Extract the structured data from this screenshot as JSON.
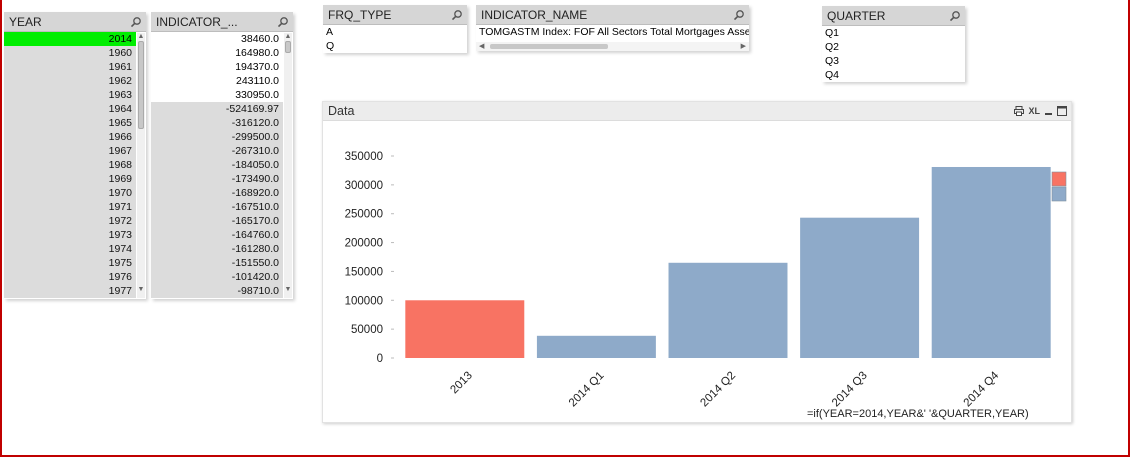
{
  "year_box": {
    "title": "YEAR",
    "selected": "2014",
    "items": [
      "1960",
      "1961",
      "1962",
      "1963",
      "1964",
      "1965",
      "1966",
      "1967",
      "1968",
      "1969",
      "1970",
      "1971",
      "1972",
      "1973",
      "1974",
      "1975",
      "1976",
      "1977"
    ]
  },
  "indicator_box": {
    "title": "INDICATOR_...",
    "white_items": [
      "38460.0",
      "164980.0",
      "194370.0",
      "243110.0",
      "330950.0"
    ],
    "gray_items": [
      "-524169.97",
      "-316120.0",
      "-299500.0",
      "-267310.0",
      "-184050.0",
      "-173490.0",
      "-168920.0",
      "-167510.0",
      "-165170.0",
      "-164760.0",
      "-161280.0",
      "-151550.0",
      "-101420.0",
      "-98710.0"
    ]
  },
  "frq_box": {
    "title": "FRQ_TYPE",
    "items": [
      "A",
      "Q"
    ]
  },
  "indicator_name_box": {
    "title": "INDICATOR_NAME",
    "items": [
      "TOMGASTM Index: FOF All Sectors Total Mortgages Asse"
    ]
  },
  "quarter_box": {
    "title": "QUARTER",
    "items": [
      "Q1",
      "Q2",
      "Q3",
      "Q4"
    ]
  },
  "chart_panel": {
    "title": "Data",
    "xl_label": "XL",
    "expression": "=if(YEAR=2014,YEAR&' '&QUARTER,YEAR)"
  },
  "colors": {
    "selected_green": "#00ee00",
    "bar_highlight": "#f87363",
    "bar_default": "#8eaac9",
    "alt_row": "#dcdcdc"
  },
  "chart_data": {
    "type": "bar",
    "categories": [
      "2013",
      "2014 Q1",
      "2014 Q2",
      "2014 Q3",
      "2014 Q4"
    ],
    "values": [
      100000,
      38460,
      164980,
      243110,
      330950
    ],
    "colors": [
      "#f87363",
      "#8eaac9",
      "#8eaac9",
      "#8eaac9",
      "#8eaac9"
    ],
    "ylim": [
      0,
      350000
    ],
    "yticks": [
      "0",
      "50000",
      "100000",
      "150000",
      "200000",
      "250000",
      "300000",
      "350000"
    ],
    "legend_placement": "right",
    "legend_colors": [
      "#f87363",
      "#8eaac9"
    ],
    "grid": false
  }
}
